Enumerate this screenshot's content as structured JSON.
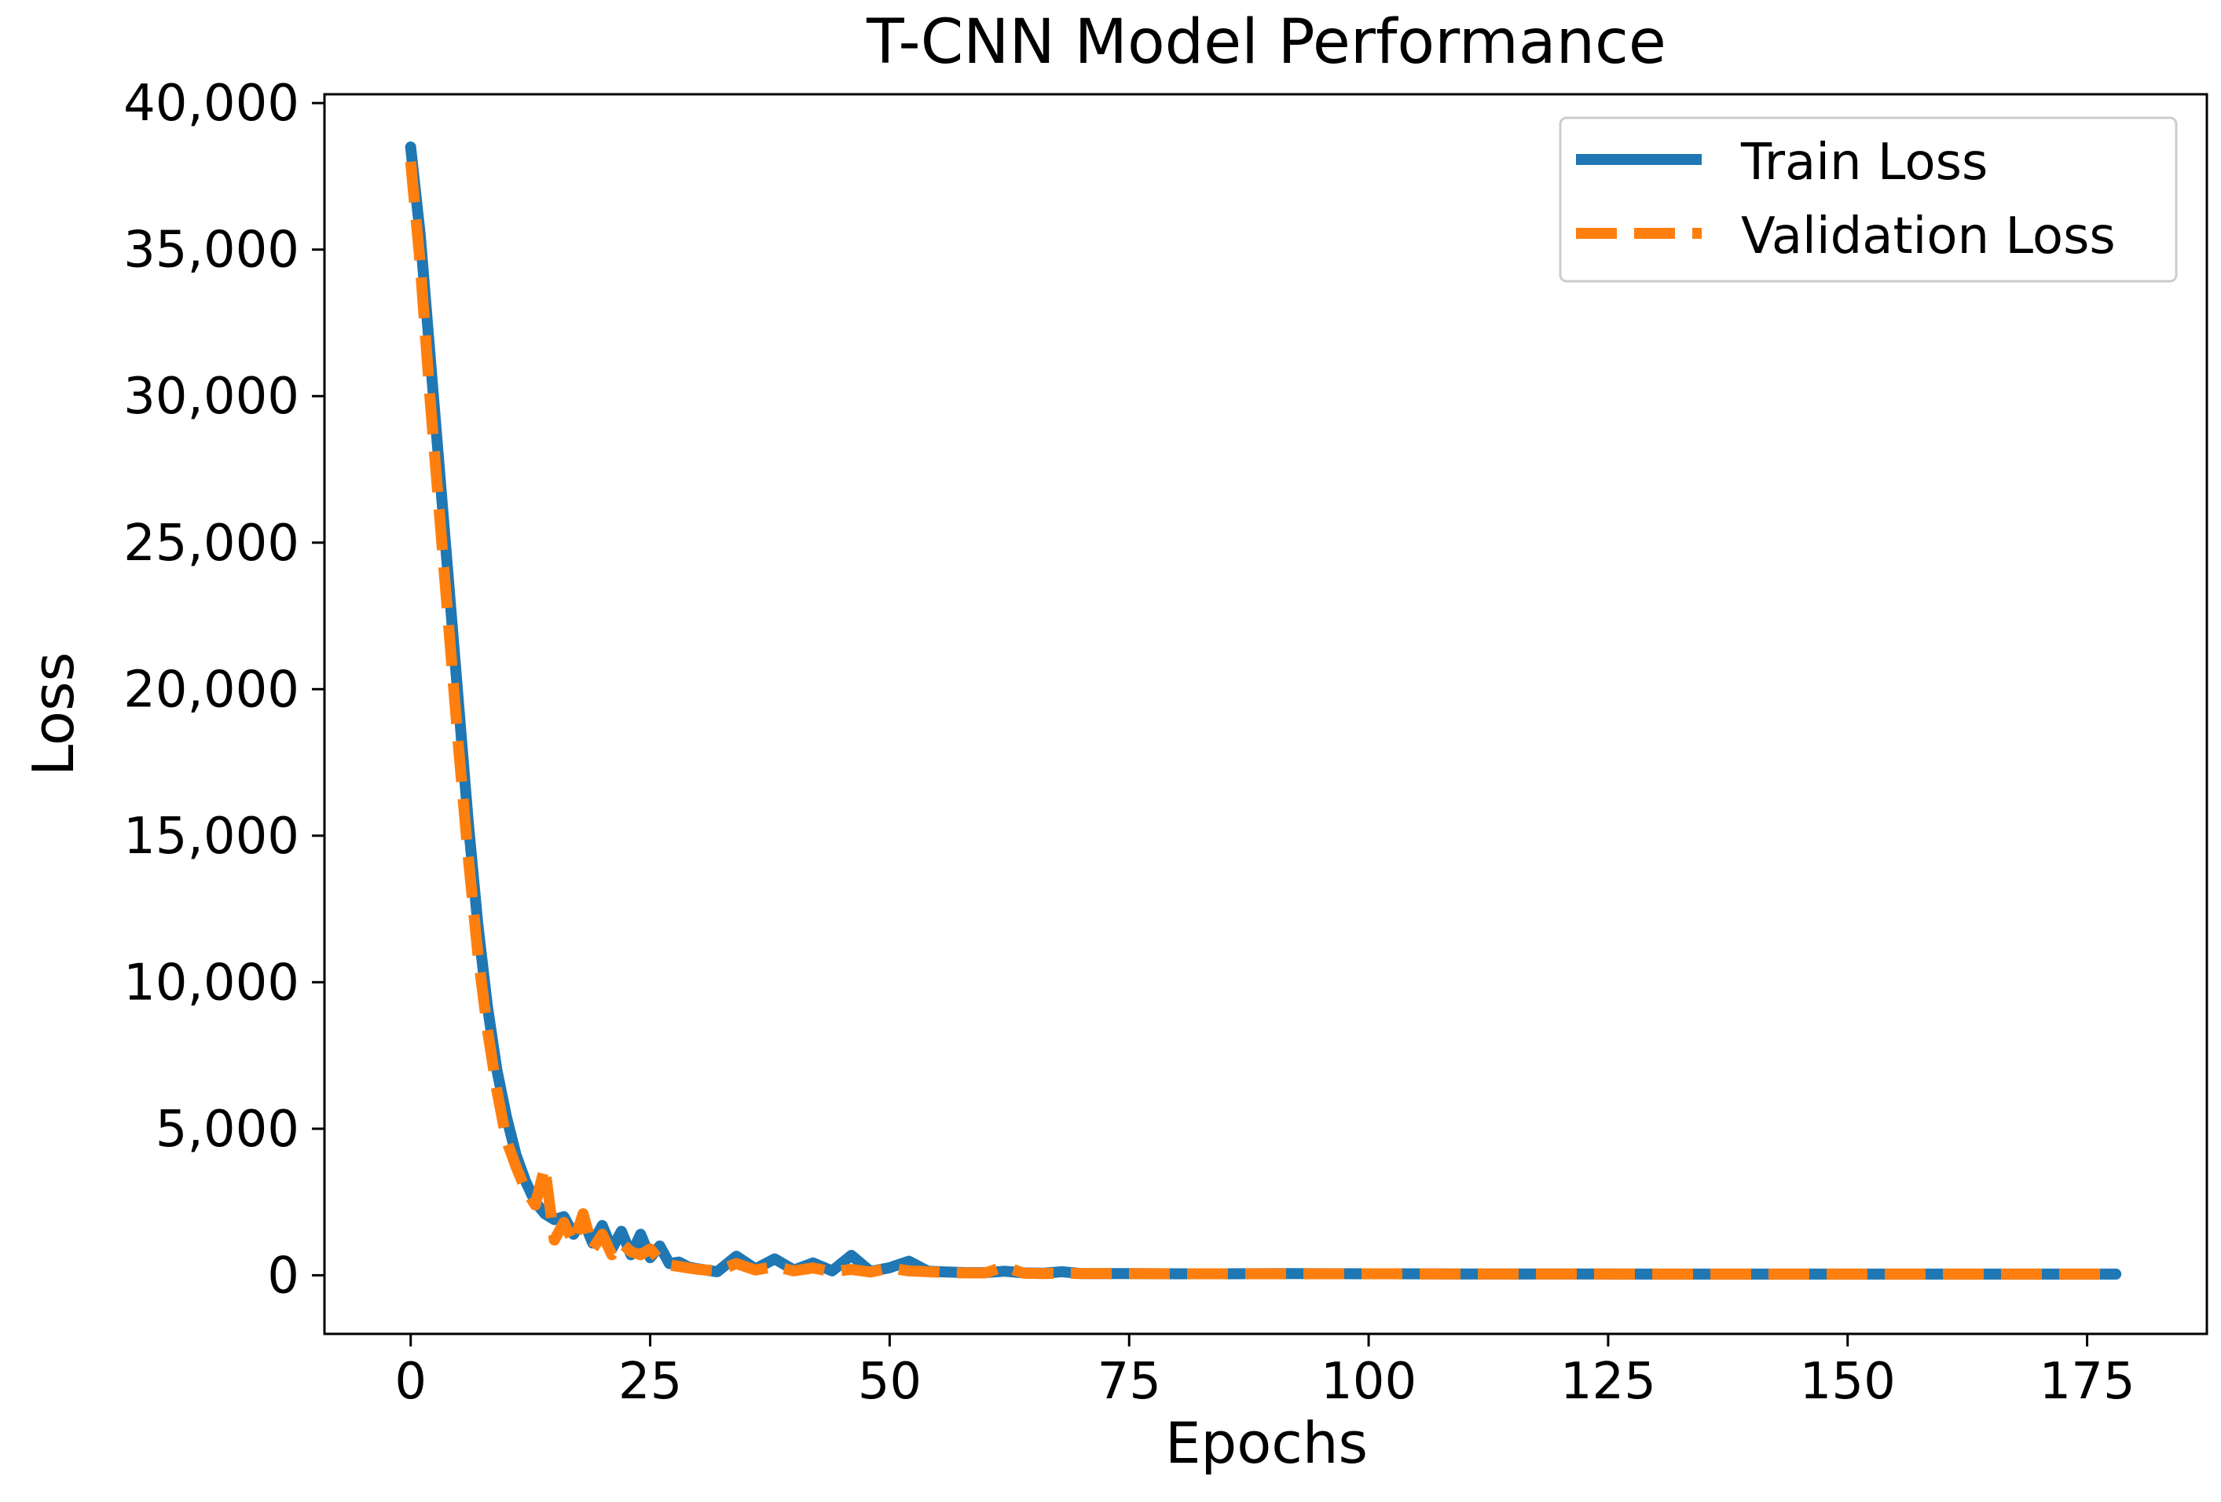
{
  "chart_data": {
    "type": "line",
    "title": "T-CNN Model Performance",
    "xlabel": "Epochs",
    "ylabel": "Loss",
    "xlim": [
      -9,
      187.5
    ],
    "ylim": [
      -2000,
      40300
    ],
    "xticks": [
      0,
      25,
      50,
      75,
      100,
      125,
      150,
      175
    ],
    "xtick_labels": [
      "0",
      "25",
      "50",
      "75",
      "100",
      "125",
      "150",
      "175"
    ],
    "yticks": [
      0,
      5000,
      10000,
      15000,
      20000,
      25000,
      30000,
      35000,
      40000
    ],
    "ytick_labels": [
      "0",
      "5,000",
      "10,000",
      "15,000",
      "20,000",
      "25,000",
      "30,000",
      "35,000",
      "40,000"
    ],
    "grid": false,
    "legend_position": "top-right",
    "series": [
      {
        "name": "Train Loss",
        "color": "#1f77b4",
        "style": "solid",
        "x": [
          0,
          1,
          2,
          3,
          4,
          5,
          6,
          7,
          8,
          9,
          10,
          11,
          12,
          13,
          14,
          15,
          16,
          17,
          18,
          19,
          20,
          21,
          22,
          23,
          24,
          25,
          26,
          27,
          28,
          29,
          30,
          32,
          34,
          36,
          38,
          40,
          42,
          44,
          46,
          48,
          50,
          52,
          54,
          56,
          58,
          60,
          62,
          64,
          66,
          68,
          70,
          75,
          80,
          85,
          90,
          100,
          110,
          120,
          130,
          140,
          150,
          160,
          170,
          178
        ],
        "y": [
          38500,
          35500,
          31500,
          27500,
          23500,
          19500,
          15500,
          12000,
          9200,
          7000,
          5400,
          4100,
          3200,
          2500,
          2100,
          1900,
          2000,
          1400,
          1900,
          1100,
          1700,
          900,
          1500,
          700,
          1400,
          600,
          1000,
          400,
          450,
          280,
          220,
          120,
          650,
          220,
          560,
          180,
          420,
          150,
          680,
          130,
          260,
          480,
          140,
          110,
          90,
          90,
          140,
          80,
          70,
          120,
          60,
          60,
          50,
          50,
          60,
          50,
          45,
          45,
          40,
          40,
          40,
          40,
          40,
          40
        ]
      },
      {
        "name": "Validation Loss",
        "color": "#ff7f0e",
        "style": "dashed",
        "x": [
          0,
          1,
          2,
          3,
          4,
          5,
          6,
          7,
          8,
          9,
          10,
          11,
          12,
          13,
          14,
          15,
          16,
          17,
          18,
          19,
          20,
          21,
          22,
          23,
          24,
          25,
          26,
          27,
          28,
          29,
          30,
          32,
          34,
          36,
          38,
          40,
          42,
          44,
          46,
          48,
          50,
          52,
          54,
          56,
          58,
          60,
          62,
          64,
          66,
          68,
          70,
          75,
          80,
          85,
          90,
          100,
          110,
          120,
          130,
          140,
          150,
          160,
          170,
          178
        ],
        "y": [
          38000,
          34500,
          30000,
          26000,
          22000,
          18000,
          14300,
          11000,
          8400,
          6300,
          4600,
          3700,
          2900,
          2400,
          3700,
          1200,
          1800,
          1100,
          2100,
          900,
          1400,
          700,
          1100,
          800,
          700,
          900,
          500,
          350,
          300,
          250,
          200,
          150,
          400,
          180,
          300,
          150,
          250,
          120,
          200,
          110,
          250,
          150,
          120,
          90,
          80,
          80,
          300,
          70,
          60,
          70,
          60,
          60,
          50,
          50,
          50,
          50,
          45,
          45,
          40,
          40,
          40,
          40,
          40,
          40
        ]
      }
    ]
  }
}
